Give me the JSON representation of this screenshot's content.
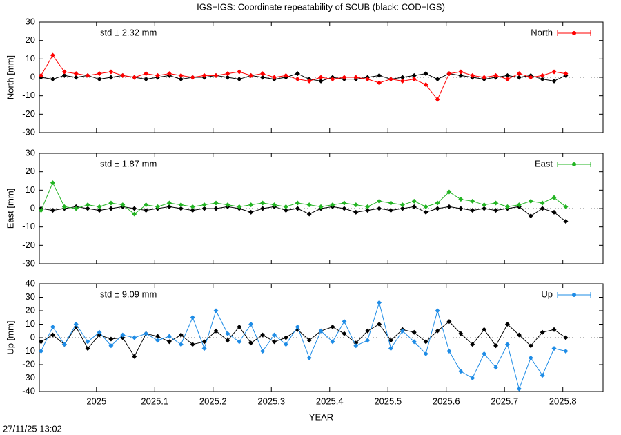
{
  "title": "IGS−IGS: Coordinate repeatability of SCUB (black: COD−IGS)",
  "timestamp": "27/11/25 13:02",
  "chart_data": [
    {
      "type": "line",
      "ylabel": "North [mm]",
      "annotation": "std ± 2.32 mm",
      "legend": "top-right",
      "xlim": [
        2024.902,
        2025.869
      ],
      "ylim": [
        -30,
        30
      ],
      "yticks": [
        -30,
        -20,
        -10,
        0,
        10,
        20,
        30
      ],
      "x": [
        2024.905,
        2024.925,
        2024.945,
        2024.965,
        2024.985,
        2025.005,
        2025.025,
        2025.045,
        2025.065,
        2025.085,
        2025.105,
        2025.125,
        2025.145,
        2025.165,
        2025.185,
        2025.205,
        2025.225,
        2025.245,
        2025.265,
        2025.285,
        2025.305,
        2025.325,
        2025.345,
        2025.365,
        2025.385,
        2025.405,
        2025.425,
        2025.445,
        2025.465,
        2025.485,
        2025.505,
        2025.525,
        2025.545,
        2025.565,
        2025.585,
        2025.605,
        2025.625,
        2025.645,
        2025.665,
        2025.685,
        2025.705,
        2025.725,
        2025.745,
        2025.765,
        2025.785,
        2025.805
      ],
      "series": [
        {
          "color": "#000000",
          "values": [
            0,
            -1,
            1,
            0,
            1,
            -1,
            0,
            1,
            0,
            -1,
            0,
            1,
            -1,
            0,
            0,
            1,
            0,
            -1,
            1,
            0,
            -1,
            0,
            2,
            -1,
            -2,
            0,
            -1,
            -1,
            0,
            1,
            -1,
            0,
            1,
            2,
            -1,
            2,
            1,
            0,
            -1,
            0,
            1,
            0,
            1,
            -1,
            -2,
            1
          ]
        },
        {
          "name": "North",
          "color": "#ff0000",
          "values": [
            1,
            12,
            3,
            2,
            1,
            2,
            3,
            1,
            0,
            2,
            1,
            2,
            1,
            0,
            1,
            1,
            2,
            3,
            1,
            2,
            0,
            1,
            -1,
            -2,
            0,
            -1,
            0,
            0,
            -1,
            -3,
            -1,
            -2,
            -1,
            -4,
            -12,
            2,
            3,
            1,
            0,
            1,
            -1,
            2,
            0,
            1,
            3,
            2
          ]
        }
      ]
    },
    {
      "type": "line",
      "ylabel": "East [mm]",
      "annotation": "std ± 1.87 mm",
      "legend": "top-right",
      "xlim": [
        2024.902,
        2025.869
      ],
      "ylim": [
        -30,
        30
      ],
      "yticks": [
        -30,
        -20,
        -10,
        0,
        10,
        20,
        30
      ],
      "x": [
        2024.905,
        2024.925,
        2024.945,
        2024.965,
        2024.985,
        2025.005,
        2025.025,
        2025.045,
        2025.065,
        2025.085,
        2025.105,
        2025.125,
        2025.145,
        2025.165,
        2025.185,
        2025.205,
        2025.225,
        2025.245,
        2025.265,
        2025.285,
        2025.305,
        2025.325,
        2025.345,
        2025.365,
        2025.385,
        2025.405,
        2025.425,
        2025.445,
        2025.465,
        2025.485,
        2025.505,
        2025.525,
        2025.545,
        2025.565,
        2025.585,
        2025.605,
        2025.625,
        2025.645,
        2025.665,
        2025.685,
        2025.705,
        2025.725,
        2025.745,
        2025.765,
        2025.785,
        2025.805
      ],
      "series": [
        {
          "color": "#000000",
          "values": [
            0,
            -1,
            0,
            1,
            0,
            -1,
            0,
            1,
            0,
            -1,
            0,
            1,
            0,
            -1,
            0,
            0,
            1,
            0,
            -2,
            0,
            1,
            -1,
            0,
            -3,
            0,
            1,
            0,
            -2,
            -1,
            0,
            -1,
            0,
            1,
            -2,
            0,
            1,
            0,
            -1,
            0,
            -1,
            0,
            1,
            -4,
            0,
            -2,
            -7
          ]
        },
        {
          "name": "East",
          "color": "#22b422",
          "values": [
            -1,
            14,
            1,
            0,
            2,
            1,
            3,
            2,
            -3,
            2,
            1,
            3,
            2,
            1,
            2,
            3,
            2,
            1,
            2,
            3,
            2,
            1,
            3,
            2,
            1,
            2,
            3,
            2,
            1,
            4,
            3,
            2,
            4,
            1,
            3,
            9,
            5,
            4,
            2,
            3,
            1,
            2,
            4,
            3,
            6,
            1
          ]
        }
      ]
    },
    {
      "type": "line",
      "ylabel": "Up [mm]",
      "annotation": "std ± 9.09 mm",
      "legend": "top-right",
      "xlabel": "YEAR",
      "xlim": [
        2024.902,
        2025.869
      ],
      "ylim": [
        -40,
        40
      ],
      "yticks": [
        -40,
        -30,
        -20,
        -10,
        0,
        10,
        20,
        30,
        40
      ],
      "xticks": [
        2025,
        2025.1,
        2025.2,
        2025.3,
        2025.4,
        2025.5,
        2025.6,
        2025.7,
        2025.8
      ],
      "x": [
        2024.905,
        2024.925,
        2024.945,
        2024.965,
        2024.985,
        2025.005,
        2025.025,
        2025.045,
        2025.065,
        2025.085,
        2025.105,
        2025.125,
        2025.145,
        2025.165,
        2025.185,
        2025.205,
        2025.225,
        2025.245,
        2025.265,
        2025.285,
        2025.305,
        2025.325,
        2025.345,
        2025.365,
        2025.385,
        2025.405,
        2025.425,
        2025.445,
        2025.465,
        2025.485,
        2025.505,
        2025.525,
        2025.545,
        2025.565,
        2025.585,
        2025.605,
        2025.625,
        2025.645,
        2025.665,
        2025.685,
        2025.705,
        2025.725,
        2025.745,
        2025.765,
        2025.785,
        2025.805
      ],
      "series": [
        {
          "color": "#000000",
          "values": [
            -3,
            2,
            -5,
            8,
            -8,
            2,
            -1,
            0,
            -14,
            3,
            1,
            -3,
            2,
            -5,
            -3,
            5,
            -2,
            8,
            -4,
            2,
            -3,
            0,
            6,
            -2,
            5,
            8,
            3,
            -4,
            5,
            10,
            -2,
            6,
            4,
            -3,
            5,
            12,
            3,
            -5,
            6,
            -6,
            10,
            2,
            -6,
            4,
            6,
            0
          ]
        },
        {
          "name": "Up",
          "color": "#1e8ce6",
          "values": [
            -10,
            8,
            -5,
            10,
            -3,
            4,
            -6,
            2,
            0,
            3,
            -2,
            1,
            -5,
            15,
            -8,
            20,
            3,
            -3,
            10,
            -10,
            2,
            -5,
            8,
            -15,
            5,
            -3,
            12,
            -6,
            -2,
            26,
            -8,
            5,
            -3,
            -12,
            20,
            -10,
            -25,
            -30,
            -12,
            -22,
            -5,
            -38,
            -15,
            -28,
            -8,
            -10
          ]
        }
      ]
    }
  ]
}
